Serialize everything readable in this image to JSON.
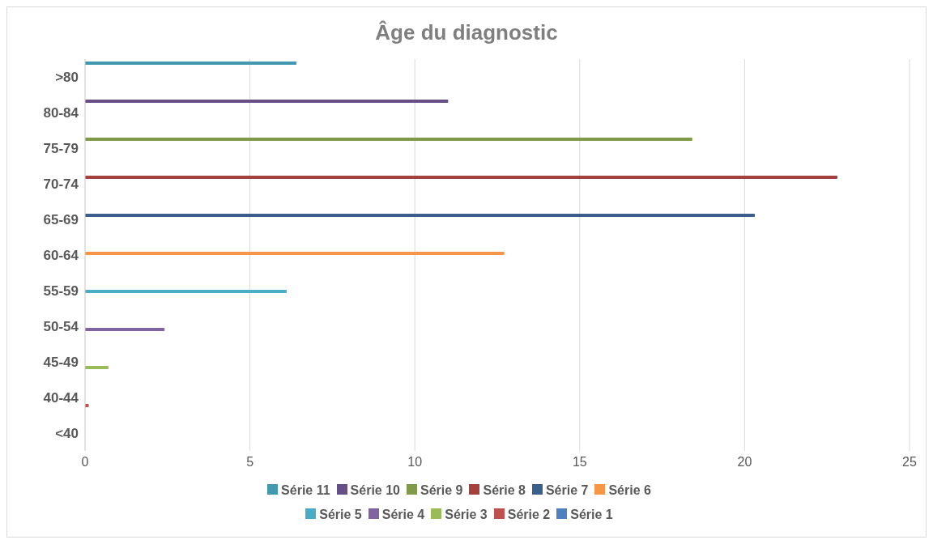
{
  "chart_data": {
    "type": "bar",
    "orientation": "horizontal",
    "title": "Âge du diagnostic",
    "categories": [
      ">80",
      "80-84",
      "75-79",
      "70-74",
      "65-69",
      "60-64",
      "55-59",
      "50-54",
      "45-49",
      "40-44",
      "<40"
    ],
    "series": [
      {
        "name": "Série 11",
        "color": "#4198af",
        "values": [
          6.4,
          null,
          null,
          null,
          null,
          null,
          null,
          null,
          null,
          null,
          null
        ]
      },
      {
        "name": "Série 10",
        "color": "#664f86",
        "values": [
          null,
          11,
          null,
          null,
          null,
          null,
          null,
          null,
          null,
          null,
          null
        ]
      },
      {
        "name": "Série 9",
        "color": "#7f9a48",
        "values": [
          null,
          null,
          18.4,
          null,
          null,
          null,
          null,
          null,
          null,
          null,
          null
        ]
      },
      {
        "name": "Série 8",
        "color": "#a5403d",
        "values": [
          null,
          null,
          null,
          22.8,
          null,
          null,
          null,
          null,
          null,
          null,
          null
        ]
      },
      {
        "name": "Série 7",
        "color": "#3a5f8b",
        "values": [
          null,
          null,
          null,
          null,
          20.3,
          null,
          null,
          null,
          null,
          null,
          null
        ]
      },
      {
        "name": "Série 6",
        "color": "#f79646",
        "values": [
          null,
          null,
          null,
          null,
          null,
          12.7,
          null,
          null,
          null,
          null,
          null
        ]
      },
      {
        "name": "Série 5",
        "color": "#4bacc6",
        "values": [
          null,
          null,
          null,
          null,
          null,
          null,
          6.1,
          null,
          null,
          null,
          null
        ]
      },
      {
        "name": "Série 4",
        "color": "#8064a2",
        "values": [
          null,
          null,
          null,
          null,
          null,
          null,
          null,
          2.4,
          null,
          null,
          null
        ]
      },
      {
        "name": "Série 3",
        "color": "#9bbb59",
        "values": [
          null,
          null,
          null,
          null,
          null,
          null,
          null,
          null,
          0.7,
          null,
          null
        ]
      },
      {
        "name": "Série 2",
        "color": "#c0504d",
        "values": [
          null,
          null,
          null,
          null,
          null,
          null,
          null,
          null,
          null,
          0.1,
          null
        ]
      },
      {
        "name": "Série 1",
        "color": "#4f81bd",
        "values": [
          null,
          null,
          null,
          null,
          null,
          null,
          null,
          null,
          null,
          null,
          0
        ]
      }
    ],
    "xlim": [
      0,
      25
    ],
    "xticks": [
      0,
      5,
      10,
      15,
      20,
      25
    ],
    "grid": "x",
    "legend": "bottom"
  }
}
